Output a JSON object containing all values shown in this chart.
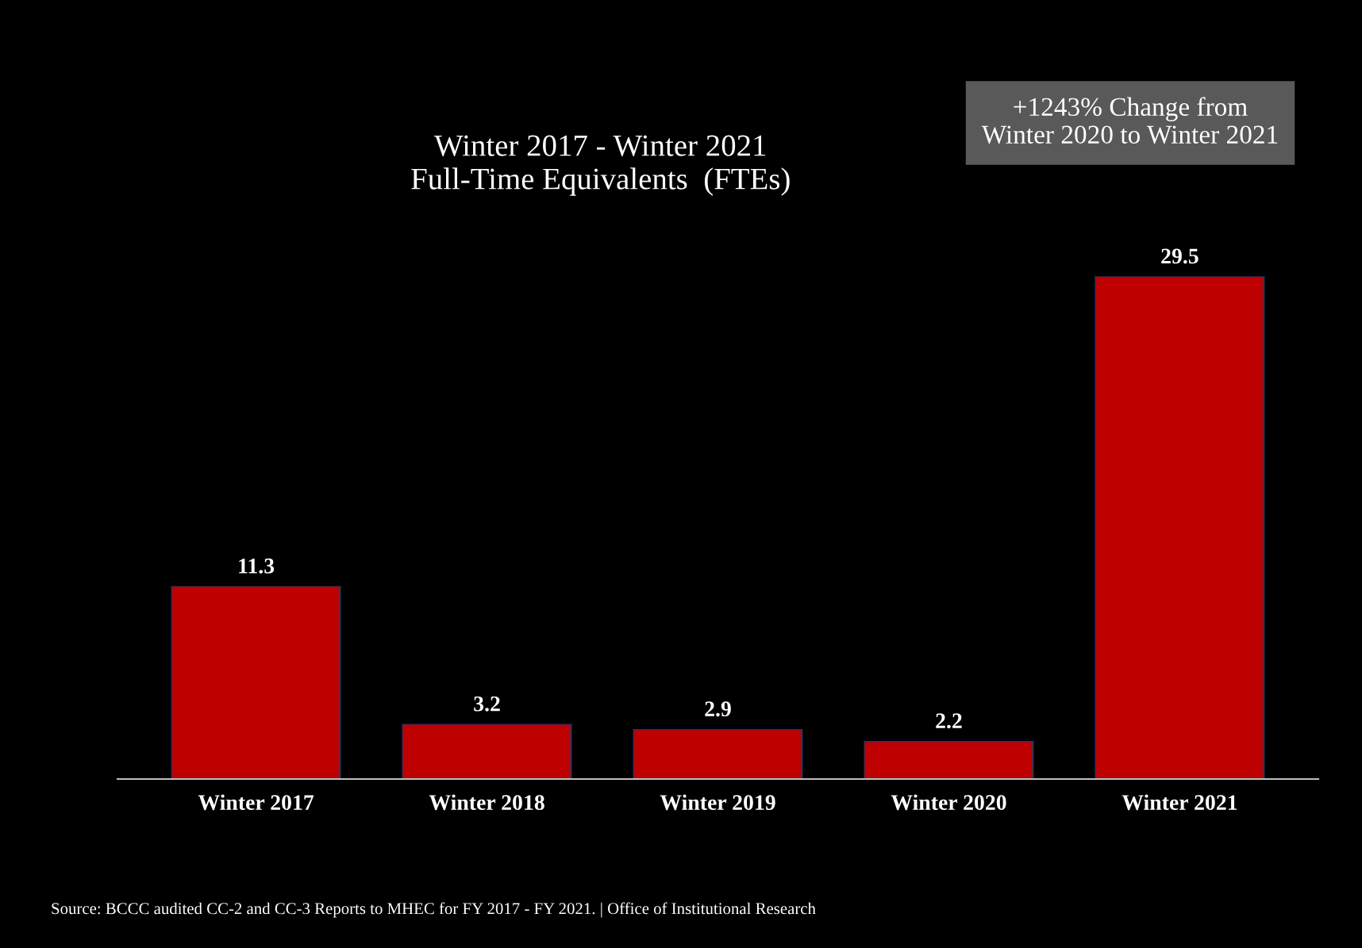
{
  "chart_data": {
    "type": "bar",
    "title": "Winter 2017 - Winter 2021\nFull-Time Equivalents  (FTEs)",
    "categories": [
      "Winter 2017",
      "Winter 2018",
      "Winter 2019",
      "Winter 2020",
      "Winter 2021"
    ],
    "values": [
      11.3,
      3.2,
      2.9,
      2.2,
      29.5
    ],
    "color": "#bf0000",
    "data_labels": true,
    "grid": false,
    "legend": false,
    "tick_labels": "x",
    "annotations": [
      "+1243% Change from\nWinter 2020 to Winter 2021",
      "Source: BCCC audited CC-2 and CC-3 Reports to MHEC for FY 2017 - FY 2021. | Office of Institutional Research"
    ]
  }
}
